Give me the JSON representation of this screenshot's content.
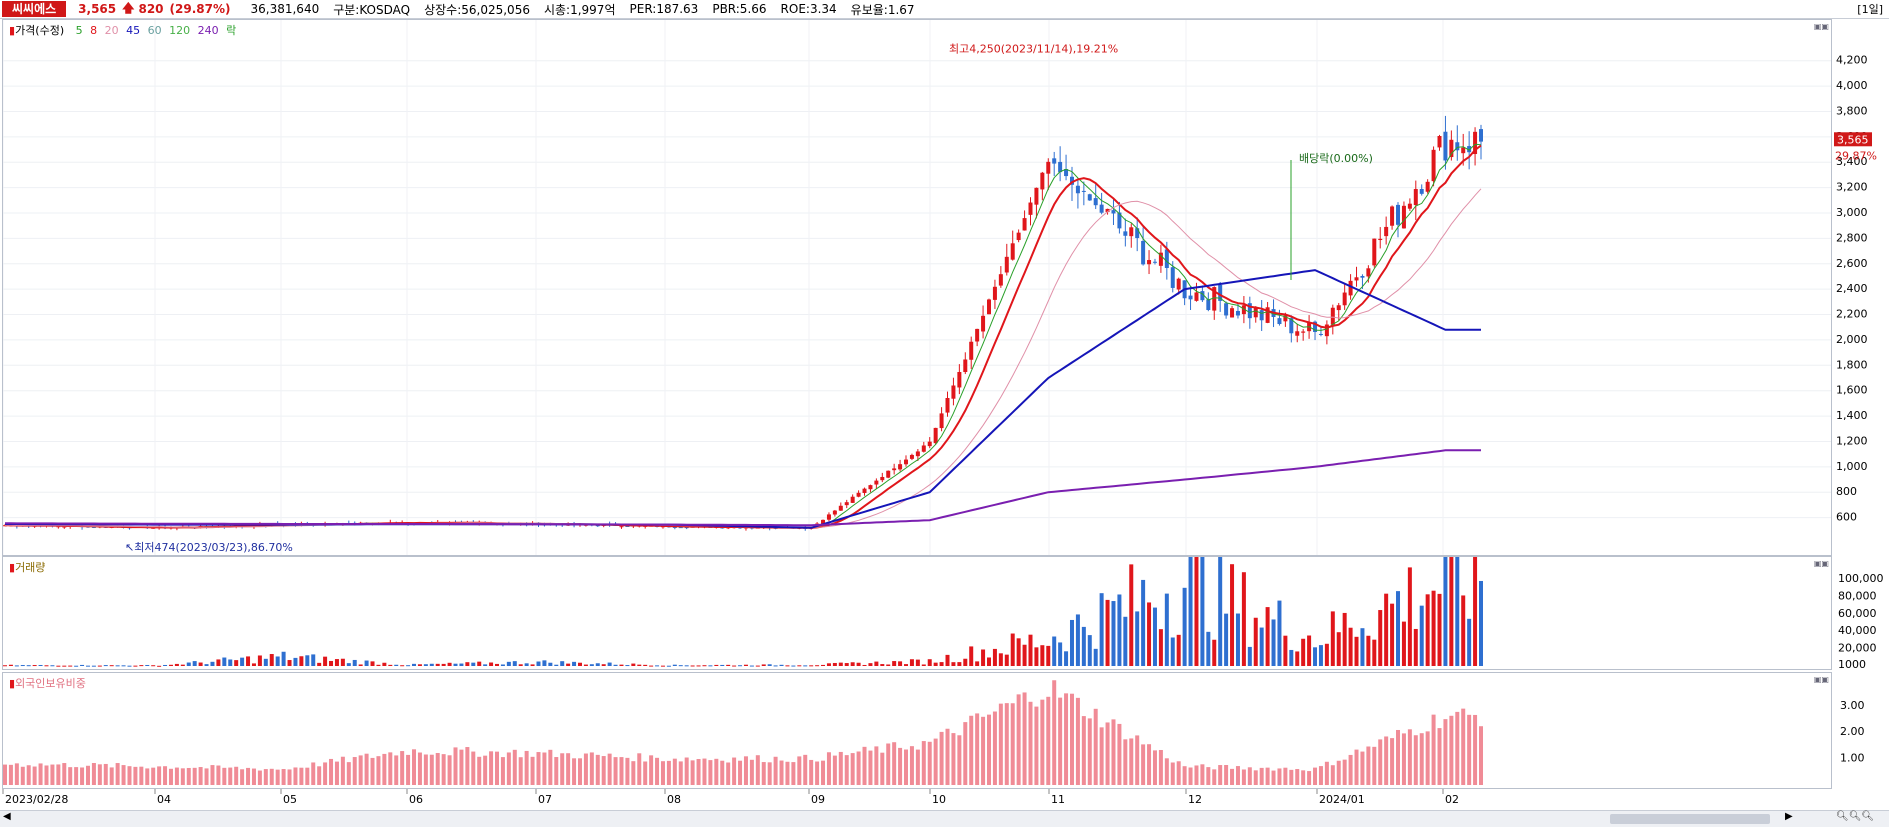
{
  "header": {
    "stock_name": "씨씨에스",
    "price": "3,565",
    "change_arrow": "🡅",
    "change": "820",
    "change_pct": "(29.87%)",
    "amount": "36,381,640",
    "market": "구분:KOSDAQ",
    "shares": "상장수:56,025,056",
    "market_cap": "시총:1,997억",
    "per": "PER:187.63",
    "pbr": "PBR:5.66",
    "roe": "ROE:3.34",
    "float_ratio": "유보율:1.67",
    "period": "[1일]"
  },
  "legend": {
    "price_label": "가격(수정)",
    "ma5": "5",
    "ma8": "8",
    "ma20": "20",
    "ma45": "45",
    "ma60": "60",
    "ma120": "120",
    "ma240": "240",
    "drop": "락"
  },
  "panels": {
    "volume_title": "거래량",
    "foreign_title": "외국인보유비중"
  },
  "colors": {
    "up": "#e0161b",
    "down": "#2e6fd0",
    "ma5": "#2aa02a",
    "ma8": "#e0161b",
    "ma20": "#e090a8",
    "ma45": "#1515b8",
    "ma60": "#6aa0a0",
    "ma120": "#48b048",
    "ma240": "#7a1fb0",
    "foreign": "#f08b96"
  },
  "chart_data": [
    {
      "type": "line",
      "title": "",
      "x": [
        "2023/02/28",
        "04",
        "05",
        "06",
        "07",
        "08",
        "09",
        "10",
        "11",
        "12",
        "2024/01",
        "02"
      ],
      "ylim": [
        400,
        4300
      ],
      "y_ticks": [
        600,
        800,
        1000,
        1200,
        1400,
        1600,
        1800,
        2000,
        2200,
        2400,
        2600,
        2800,
        3000,
        3200,
        3400,
        3600,
        3800,
        4000,
        4200
      ],
      "series": [
        {
          "name": "가격(수정)",
          "x": [
            "2023/02/28",
            "04",
            "05",
            "06",
            "07",
            "08",
            "09",
            "10",
            "11",
            "12",
            "2024/01",
            "02"
          ],
          "values": [
            540,
            520,
            545,
            560,
            550,
            530,
            520,
            1200,
            3400,
            2400,
            2050,
            3565
          ]
        },
        {
          "name": "45",
          "x": [
            "2023/02/28",
            "04",
            "05",
            "06",
            "07",
            "08",
            "09",
            "10",
            "11",
            "12",
            "2024/01",
            "02"
          ],
          "values": [
            550,
            545,
            545,
            548,
            547,
            545,
            520,
            800,
            1700,
            2400,
            2550,
            2080
          ]
        },
        {
          "name": "240",
          "x": [
            "2023/02/28",
            "04",
            "05",
            "06",
            "07",
            "08",
            "09",
            "10",
            "11",
            "12",
            "2024/01",
            "02"
          ],
          "values": [
            555,
            552,
            550,
            550,
            548,
            545,
            540,
            580,
            800,
            900,
            1000,
            1130
          ]
        }
      ],
      "annotations": [
        {
          "label": "최고4,250(2023/11/14),19.21%",
          "x": "11",
          "y": 4250
        },
        {
          "label": "최저474(2023/03/23),86.70%",
          "x": "04",
          "y": 474
        },
        {
          "label": "배당락(0.00%)",
          "x": "12",
          "y": 3200
        }
      ],
      "current_price_label": "3,565",
      "current_pct_label": "29.87%"
    },
    {
      "type": "bar",
      "title": "거래량",
      "y_ticks": [
        "1000",
        "20,000",
        "40,000",
        "60,000",
        "80,000",
        "100,000"
      ],
      "ylim": [
        0,
        115000
      ],
      "categories": [
        "2023/02/28",
        "04",
        "05",
        "06",
        "07",
        "08",
        "09",
        "10",
        "11",
        "12",
        "2024/01",
        "02"
      ],
      "values": [
        1000,
        800,
        12000,
        1500,
        5000,
        1000,
        1500,
        6000,
        35000,
        110000,
        35000,
        110000
      ]
    },
    {
      "type": "bar",
      "title": "외국인보유비중",
      "y_ticks": [
        "1.00",
        "2.00",
        "3.00"
      ],
      "ylim": [
        0,
        3.9
      ],
      "categories": [
        "2023/02/28",
        "04",
        "05",
        "06",
        "07",
        "08",
        "09",
        "10",
        "11",
        "12",
        "2024/01",
        "02"
      ],
      "values": [
        0.8,
        0.7,
        0.6,
        1.3,
        1.2,
        1.0,
        1.0,
        1.6,
        3.7,
        0.7,
        0.6,
        2.6
      ]
    }
  ]
}
